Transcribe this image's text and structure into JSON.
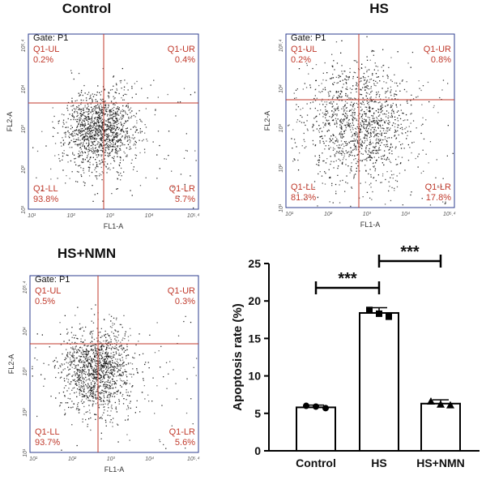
{
  "figure": {
    "dot_plots": [
      {
        "title": "Control",
        "gate": "Gate: P1",
        "xlabel": "FL1-A",
        "ylabel": "FL2-A",
        "quadrants": {
          "UL": {
            "label": "Q1-UL",
            "pct": "0.2%"
          },
          "UR": {
            "label": "Q1-UR",
            "pct": "0.4%"
          },
          "LL": {
            "label": "Q1-LL",
            "pct": "93.8%"
          },
          "LR": {
            "label": "Q1-LR",
            "pct": "5.7%"
          }
        },
        "ticks": [
          "10¹",
          "10²",
          "10³",
          "10⁴",
          "10⁵.⁴"
        ]
      },
      {
        "title": "HS",
        "gate": "Gate: P1",
        "xlabel": "FL1-A",
        "ylabel": "FL2-A",
        "quadrants": {
          "UL": {
            "label": "Q1-UL",
            "pct": "0.2%"
          },
          "UR": {
            "label": "Q1-UR",
            "pct": "0.8%"
          },
          "LL": {
            "label": "Q1-LL",
            "pct": "81.3%"
          },
          "LR": {
            "label": "Q1-LR",
            "pct": "17.8%"
          }
        },
        "ticks": [
          "10¹",
          "10²",
          "10³",
          "10⁴",
          "10⁵.⁴"
        ]
      },
      {
        "title": "HS+NMN",
        "gate": "Gate: P1",
        "xlabel": "FL1-A",
        "ylabel": "FL2-A",
        "quadrants": {
          "UL": {
            "label": "Q1-UL",
            "pct": "0.5%"
          },
          "UR": {
            "label": "Q1-UR",
            "pct": "0.3%"
          },
          "LL": {
            "label": "Q1-LL",
            "pct": "93.7%"
          },
          "LR": {
            "label": "Q1-LR",
            "pct": "5.6%"
          }
        },
        "ticks": [
          "10¹",
          "10²",
          "10³",
          "10⁴",
          "10⁵.⁴"
        ]
      }
    ]
  },
  "chart_data": {
    "type": "bar",
    "categories": [
      "Control",
      "HS",
      "HS+NMN"
    ],
    "values": [
      5.8,
      18.4,
      6.3
    ],
    "errors": [
      0.3,
      0.7,
      0.5
    ],
    "points": [
      [
        6.0,
        5.9,
        5.7
      ],
      [
        18.8,
        18.3,
        17.9
      ],
      [
        6.6,
        6.2,
        6.1
      ]
    ],
    "ylabel": "Apoptosis rate (%)",
    "ylim": [
      0,
      25
    ],
    "yticks": [
      0,
      5,
      10,
      15,
      20,
      25
    ],
    "significance": [
      {
        "from": "Control",
        "to": "HS",
        "label": "***"
      },
      {
        "from": "HS",
        "to": "HS+NMN",
        "label": "***"
      }
    ],
    "colors": {
      "bar_fill": "#ffffff",
      "bar_edge": "#000000"
    }
  }
}
